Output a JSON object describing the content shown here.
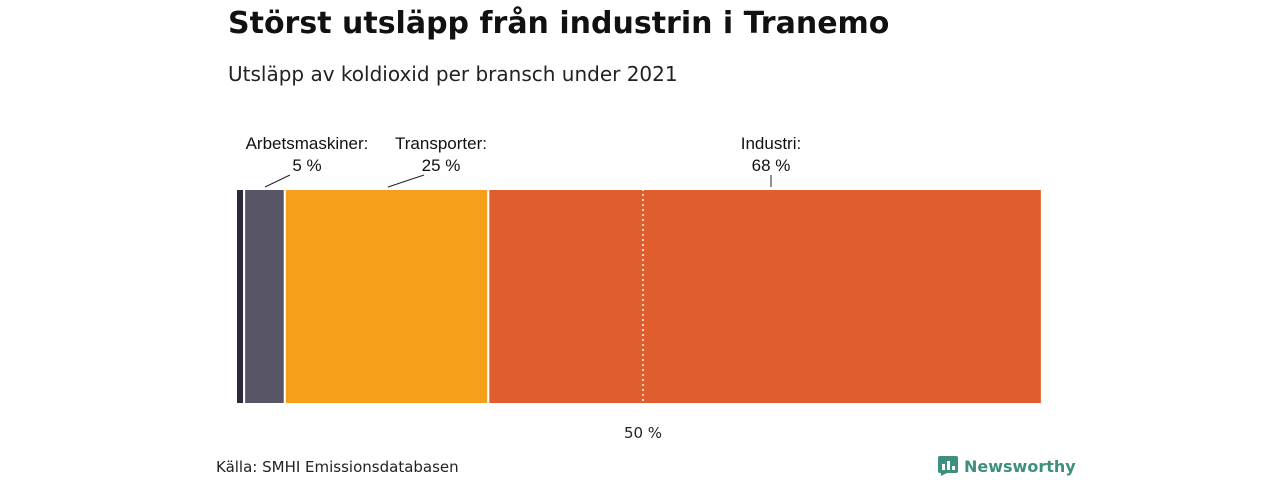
{
  "title": "Störst utsläpp från industrin i Tranemo",
  "subtitle": "Utsläpp av koldioxid per bransch under 2021",
  "source": "Källa: SMHI Emissionsdatabasen",
  "brand": {
    "name": "Newsworthy",
    "color": "#3f8f7f"
  },
  "chart_data": {
    "type": "bar",
    "orientation": "horizontal-stacked",
    "xlim": [
      0,
      100
    ],
    "reference_line": {
      "value": 50,
      "label": "50 %",
      "style": "dotted"
    },
    "segments": [
      {
        "label": "",
        "value": 1,
        "value_label": "",
        "color": "#2b2a3a"
      },
      {
        "label": "Arbetsmaskiner:",
        "value": 5,
        "value_label": "5 %",
        "color": "#585666"
      },
      {
        "label": "Transporter:",
        "value": 25,
        "value_label": "25 %",
        "color": "#f59f1b"
      },
      {
        "label": "Industri:",
        "value": 68,
        "value_label": "68 %",
        "color": "#e05e2e"
      }
    ]
  }
}
